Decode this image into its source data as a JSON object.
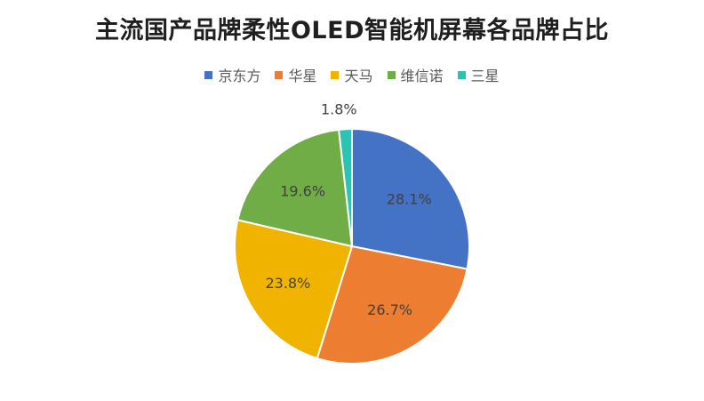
{
  "chart_data": {
    "type": "pie",
    "title": "主流国产品牌柔性OLED智能机屏幕各品牌占比",
    "categories": [
      "京东方",
      "华星",
      "天马",
      "维信诺",
      "三星"
    ],
    "values": [
      28.1,
      26.7,
      23.8,
      19.6,
      1.8
    ],
    "value_labels": [
      "28.1%",
      "26.7%",
      "23.8%",
      "19.6%",
      "1.8%"
    ],
    "colors": [
      "#4472C4",
      "#ED7D31",
      "#F0B400",
      "#70AD47",
      "#2DC3B4"
    ],
    "legend_position": "top",
    "start_angle_deg": 0,
    "direction": "clockwise"
  }
}
